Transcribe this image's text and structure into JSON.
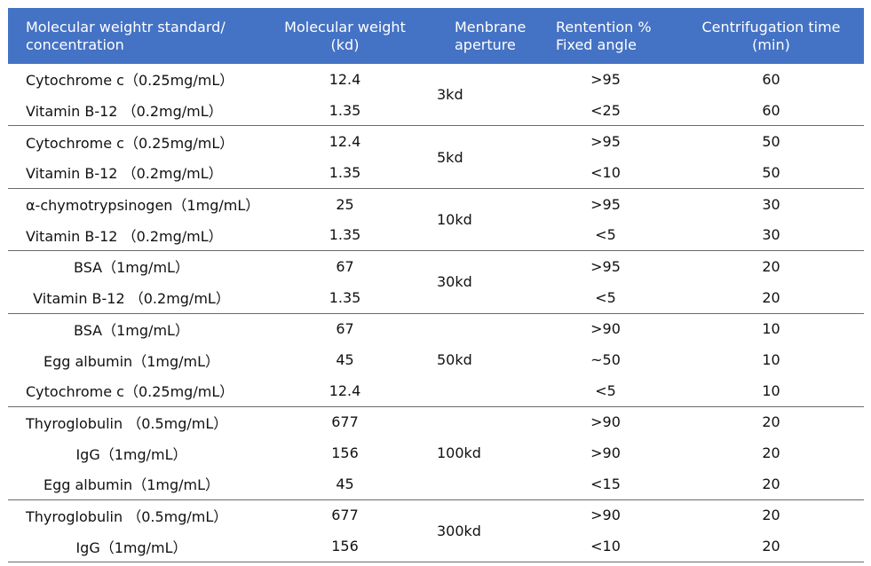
{
  "headers": {
    "standard": [
      "Molecular weightr standard/",
      "concentration"
    ],
    "mw": [
      "Molecular weight",
      "(kd)"
    ],
    "aperture": [
      "Menbrane",
      "aperture"
    ],
    "retention": [
      "Rentention %",
      "Fixed  angle"
    ],
    "time": [
      "Centrifugation time",
      "(min)"
    ]
  },
  "groups": [
    {
      "aperture": "3kd",
      "rows": [
        {
          "standard": "Cytochrome c（0.25mg/mL）",
          "mw": "12.4",
          "retention": ">95",
          "time": "60",
          "align": "left"
        },
        {
          "standard": "Vitamin B-12 （0.2mg/mL）",
          "mw": "1.35",
          "retention": "<25",
          "time": "60",
          "align": "left"
        }
      ]
    },
    {
      "aperture": "5kd",
      "rows": [
        {
          "standard": "Cytochrome c（0.25mg/mL）",
          "mw": "12.4",
          "retention": ">95",
          "time": "50",
          "align": "left"
        },
        {
          "standard": "Vitamin B-12 （0.2mg/mL）",
          "mw": "1.35",
          "retention": "<10",
          "time": "50",
          "align": "left"
        }
      ]
    },
    {
      "aperture": "10kd",
      "rows": [
        {
          "standard": "α-chymotrypsinogen（1mg/mL）",
          "mw": "25",
          "retention": ">95",
          "time": "30",
          "align": "left"
        },
        {
          "standard": "Vitamin B-12 （0.2mg/mL）",
          "mw": "1.35",
          "retention": "<5",
          "time": "30",
          "align": "left"
        }
      ]
    },
    {
      "aperture": "30kd",
      "rows": [
        {
          "standard": "BSA（1mg/mL）",
          "mw": "67",
          "retention": ">95",
          "time": "20",
          "align": "center"
        },
        {
          "standard": "Vitamin B-12 （0.2mg/mL）",
          "mw": "1.35",
          "retention": "<5",
          "time": "20",
          "align": "center"
        }
      ]
    },
    {
      "aperture": "50kd",
      "rows": [
        {
          "standard": "BSA（1mg/mL）",
          "mw": "67",
          "retention": ">90",
          "time": "10",
          "align": "center"
        },
        {
          "standard": "Egg albumin（1mg/mL）",
          "mw": "45",
          "retention": "~50",
          "time": "10",
          "align": "center"
        },
        {
          "standard": "Cytochrome c（0.25mg/mL）",
          "mw": "12.4",
          "retention": "<5",
          "time": "10",
          "align": "left"
        }
      ]
    },
    {
      "aperture": "100kd",
      "rows": [
        {
          "standard": "Thyroglobulin （0.5mg/mL）",
          "mw": "677",
          "retention": ">90",
          "time": "20",
          "align": "left"
        },
        {
          "standard": "IgG（1mg/mL）",
          "mw": "156",
          "retention": ">90",
          "time": "20",
          "align": "center"
        },
        {
          "standard": "Egg albumin（1mg/mL）",
          "mw": "45",
          "retention": "<15",
          "time": "20",
          "align": "center"
        }
      ]
    },
    {
      "aperture": "300kd",
      "rows": [
        {
          "standard": "Thyroglobulin （0.5mg/mL）",
          "mw": "677",
          "retention": ">90",
          "time": "20",
          "align": "left"
        },
        {
          "standard": "IgG（1mg/mL）",
          "mw": "156",
          "retention": "<10",
          "time": "20",
          "align": "center"
        }
      ]
    }
  ],
  "colors": {
    "header_bg": "#4472c4",
    "header_text": "#ffffff",
    "rule": "#6b6b6b"
  }
}
